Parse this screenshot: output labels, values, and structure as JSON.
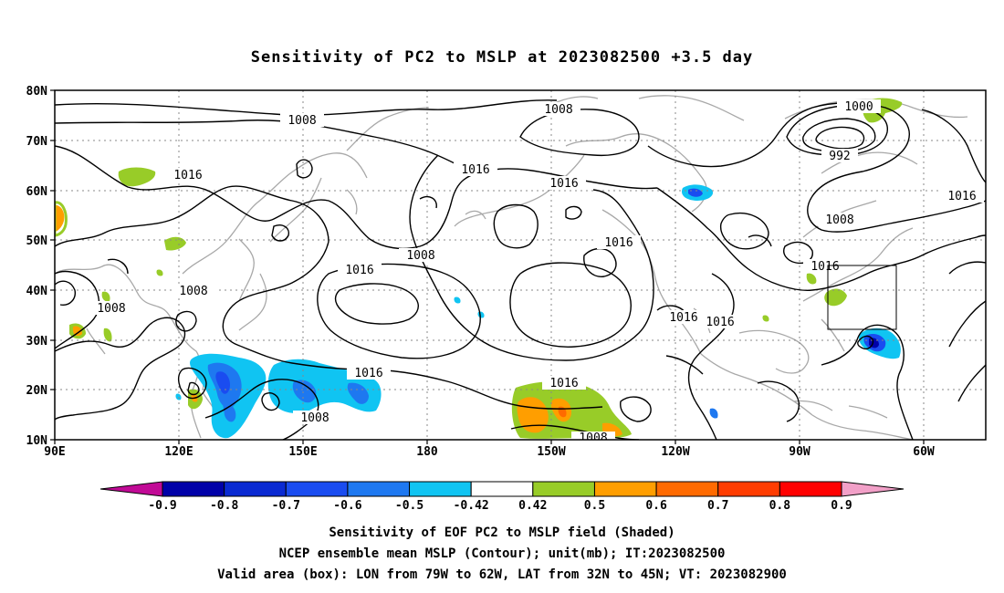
{
  "title": "Sensitivity of PC2 to MSLP at 2023082500 +3.5 day",
  "map": {
    "lat_ticks": [
      "80N",
      "70N",
      "60N",
      "50N",
      "40N",
      "30N",
      "20N",
      "10N"
    ],
    "lon_ticks": [
      "90E",
      "120E",
      "150E",
      "180",
      "150W",
      "120W",
      "90W",
      "60W"
    ],
    "lat_range": [
      10,
      80
    ],
    "lon_range_east": [
      90,
      315
    ],
    "grid": "dotted"
  },
  "contours": {
    "units": "mb",
    "labels": [
      {
        "text": "1008"
      },
      {
        "text": "1016"
      },
      {
        "text": "1008"
      },
      {
        "text": "1016"
      },
      {
        "text": "1008"
      },
      {
        "text": "1016"
      },
      {
        "text": "1016"
      },
      {
        "text": "1008"
      },
      {
        "text": "1016"
      },
      {
        "text": "1008"
      },
      {
        "text": "1016"
      },
      {
        "text": "1008"
      },
      {
        "text": "1016"
      },
      {
        "text": "1016"
      },
      {
        "text": "1008"
      },
      {
        "text": "1000"
      },
      {
        "text": "992"
      },
      {
        "text": "1008"
      },
      {
        "text": "1016"
      },
      {
        "text": "1016"
      }
    ]
  },
  "colorbar": {
    "labels": [
      "-0.9",
      "-0.8",
      "-0.7",
      "-0.6",
      "-0.5",
      "-0.42",
      "0.42",
      "0.5",
      "0.6",
      "0.7",
      "0.8",
      "0.9"
    ],
    "colors": [
      "#c10a96",
      "#0000a8",
      "#0a2ad2",
      "#1a4cf0",
      "#1e78f0",
      "#10c4f2",
      "#ffffff",
      "#98cc28",
      "#ff9e00",
      "#ff6a00",
      "#ff3c00",
      "#ff0000",
      "#f2a0c8"
    ]
  },
  "valid_box": {
    "lon": [
      -79,
      -62
    ],
    "lat": [
      32,
      45
    ]
  },
  "caption": {
    "line1": "Sensitivity of EOF PC2 to MSLP field (Shaded)",
    "line2": "NCEP ensemble mean MSLP (Contour); unit(mb); IT:2023082500",
    "line3": "Valid area (box): LON from 79W to 62W, LAT from 32N to 45N; VT: 2023082900"
  }
}
